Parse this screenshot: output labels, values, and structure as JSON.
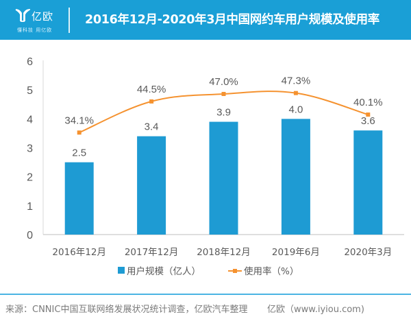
{
  "header": {
    "logo_text": "亿欧",
    "logo_subtitle": "懂科技 用亿欧",
    "title": "2016年12月-2020年3月中国网约车用户规模及使用率"
  },
  "colors": {
    "header_bg": "#1a9fd6",
    "bar": "#1e9bd3",
    "line": "#f5922f",
    "text": "#595959"
  },
  "chart_data": {
    "type": "bar",
    "title": "2016年12月-2020年3月中国网约车用户规模及使用率",
    "categories": [
      "2016年12月",
      "2017年12月",
      "2018年12月",
      "2019年6月",
      "2020年3月"
    ],
    "series": [
      {
        "name": "用户规模（亿人）",
        "type": "bar",
        "values": [
          2.5,
          3.4,
          3.9,
          4.0,
          3.6
        ],
        "labels": [
          "2.5",
          "3.4",
          "3.9",
          "4.0",
          "3.6"
        ],
        "axis": "left"
      },
      {
        "name": "使用率（%）",
        "type": "line",
        "smooth": true,
        "marker": "square",
        "values": [
          34.1,
          44.5,
          47.0,
          47.3,
          40.1
        ],
        "labels": [
          "34.1%",
          "44.5%",
          "47.0%",
          "47.3%",
          "40.1%"
        ],
        "axis": "secondary-hidden"
      }
    ],
    "yticks": [
      "0",
      "1",
      "2",
      "3",
      "4",
      "5",
      "6"
    ],
    "ylim": [
      0,
      6
    ],
    "secondary_ylim": [
      0,
      58
    ],
    "xlabel": "",
    "ylabel": "",
    "grid": false,
    "legend_position": "bottom-center"
  },
  "legend": {
    "bar_label": "用户规模（亿人）",
    "line_label": "使用率（%）"
  },
  "footer": {
    "source": "来源：CNNIC中国互联网络发展状况统计调查，亿欧汽车整理",
    "site": "亿欧（www.iyiou.com)"
  }
}
